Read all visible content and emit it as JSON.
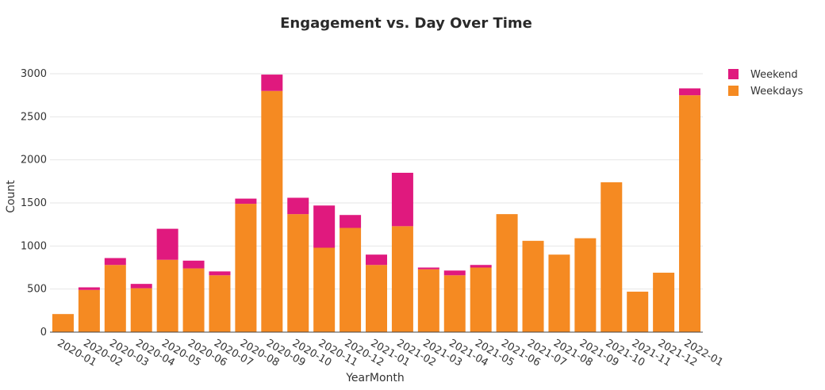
{
  "chart_data": {
    "type": "bar",
    "stacked": true,
    "title": "Engagement vs. Day Over Time",
    "xlabel": "YearMonth",
    "ylabel": "Count",
    "ylim": [
      0,
      3000
    ],
    "yticks": [
      0,
      500,
      1000,
      1500,
      2000,
      2500,
      3000
    ],
    "grid": true,
    "legend_position": "top-right",
    "categories": [
      "2020-01",
      "2020-02",
      "2020-03",
      "2020-04",
      "2020-05",
      "2020-06",
      "2020-07",
      "2020-08",
      "2020-09",
      "2020-10",
      "2020-11",
      "2020-12",
      "2021-01",
      "2021-02",
      "2021-03",
      "2021-04",
      "2021-05",
      "2021-06",
      "2021-07",
      "2021-08",
      "2021-09",
      "2021-10",
      "2021-11",
      "2021-12",
      "2022-01"
    ],
    "series": [
      {
        "name": "Weekdays",
        "color": "#f58a22",
        "values": [
          210,
          490,
          780,
          510,
          840,
          740,
          660,
          1490,
          2800,
          1370,
          980,
          1210,
          780,
          1230,
          730,
          660,
          750,
          1370,
          1060,
          900,
          1090,
          1740,
          470,
          690,
          2750
        ]
      },
      {
        "name": "Weekend",
        "color": "#e0197e",
        "values": [
          0,
          30,
          80,
          50,
          360,
          90,
          45,
          60,
          190,
          190,
          490,
          150,
          120,
          620,
          20,
          55,
          30,
          0,
          0,
          0,
          0,
          0,
          0,
          0,
          80
        ]
      }
    ],
    "legend": [
      {
        "name": "Weekend",
        "color": "#e0197e"
      },
      {
        "name": "Weekdays",
        "color": "#f58a22"
      }
    ]
  }
}
